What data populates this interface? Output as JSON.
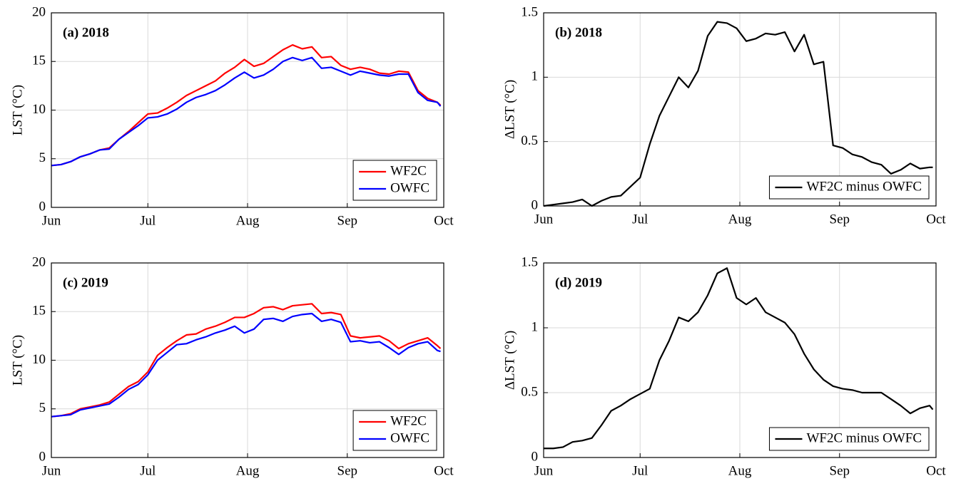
{
  "chart_data": [
    {
      "type": "line",
      "title": "(a) 2018",
      "ylabel": "LST (°C)",
      "x": [
        0,
        3,
        6,
        9,
        12,
        15,
        18,
        21,
        24,
        27,
        30,
        33,
        36,
        39,
        42,
        45,
        48,
        51,
        54,
        57,
        60,
        63,
        66,
        69,
        72,
        75,
        78,
        81,
        84,
        87,
        90,
        93,
        96,
        99,
        102,
        105,
        108,
        111,
        114,
        117,
        120,
        121
      ],
      "xlim": [
        0,
        122
      ],
      "xticks": [
        {
          "value": 0,
          "label": "Jun"
        },
        {
          "value": 30,
          "label": "Jul"
        },
        {
          "value": 61,
          "label": "Aug"
        },
        {
          "value": 92,
          "label": "Sep"
        },
        {
          "value": 122,
          "label": "Oct"
        }
      ],
      "ylim": [
        0,
        20
      ],
      "yticks": [
        0,
        5,
        10,
        15,
        20
      ],
      "grid": true,
      "legend": "lower right",
      "series": [
        {
          "name": "WF2C",
          "color": "#ff0000",
          "values": [
            4.3,
            4.4,
            4.7,
            5.2,
            5.5,
            5.9,
            6.1,
            7.0,
            7.8,
            8.7,
            9.6,
            9.7,
            10.2,
            10.8,
            11.5,
            12.0,
            12.5,
            13.0,
            13.8,
            14.4,
            15.2,
            14.5,
            14.8,
            15.5,
            16.2,
            16.7,
            16.3,
            16.5,
            15.4,
            15.5,
            14.6,
            14.2,
            14.4,
            14.2,
            13.8,
            13.7,
            14.0,
            13.9,
            12.0,
            11.2,
            10.8,
            10.5
          ]
        },
        {
          "name": "OWFC",
          "color": "#0000ff",
          "values": [
            4.3,
            4.4,
            4.7,
            5.2,
            5.5,
            5.9,
            6.0,
            7.0,
            7.7,
            8.4,
            9.2,
            9.3,
            9.6,
            10.1,
            10.8,
            11.3,
            11.6,
            12.0,
            12.6,
            13.3,
            13.9,
            13.3,
            13.6,
            14.2,
            15.0,
            15.4,
            15.1,
            15.4,
            14.3,
            14.4,
            14.0,
            13.6,
            14.0,
            13.8,
            13.6,
            13.5,
            13.7,
            13.7,
            11.8,
            11.0,
            10.8,
            10.4
          ]
        }
      ]
    },
    {
      "type": "line",
      "title": "(b) 2018",
      "ylabel": "ΔLST (°C)",
      "x": [
        0,
        3,
        6,
        9,
        12,
        15,
        18,
        21,
        24,
        27,
        30,
        33,
        36,
        39,
        42,
        45,
        48,
        51,
        54,
        57,
        60,
        63,
        66,
        69,
        72,
        75,
        78,
        81,
        84,
        87,
        90,
        93,
        96,
        99,
        102,
        105,
        108,
        111,
        114,
        117,
        120,
        121
      ],
      "xlim": [
        0,
        122
      ],
      "xticks": [
        {
          "value": 0,
          "label": "Jun"
        },
        {
          "value": 30,
          "label": "Jul"
        },
        {
          "value": 61,
          "label": "Aug"
        },
        {
          "value": 92,
          "label": "Sep"
        },
        {
          "value": 122,
          "label": "Oct"
        }
      ],
      "ylim": [
        0,
        1.5
      ],
      "yticks": [
        0,
        0.5,
        1,
        1.5
      ],
      "grid": true,
      "legend": "lower right",
      "series": [
        {
          "name": "WF2C minus OWFC",
          "color": "#000000",
          "values": [
            0.0,
            0.01,
            0.02,
            0.03,
            0.05,
            0.0,
            0.04,
            0.07,
            0.08,
            0.15,
            0.22,
            0.48,
            0.7,
            0.85,
            1.0,
            0.92,
            1.05,
            1.32,
            1.43,
            1.42,
            1.38,
            1.28,
            1.3,
            1.34,
            1.33,
            1.35,
            1.2,
            1.33,
            1.1,
            1.12,
            0.47,
            0.45,
            0.4,
            0.38,
            0.34,
            0.32,
            0.25,
            0.28,
            0.33,
            0.29,
            0.3,
            0.3
          ]
        }
      ]
    },
    {
      "type": "line",
      "title": "(c) 2019",
      "ylabel": "LST (°C)",
      "x": [
        0,
        3,
        6,
        9,
        12,
        15,
        18,
        21,
        24,
        27,
        30,
        33,
        36,
        39,
        42,
        45,
        48,
        51,
        54,
        57,
        60,
        63,
        66,
        69,
        72,
        75,
        78,
        81,
        84,
        87,
        90,
        93,
        96,
        99,
        102,
        105,
        108,
        111,
        114,
        117,
        120,
        121
      ],
      "xlim": [
        0,
        122
      ],
      "xticks": [
        {
          "value": 0,
          "label": "Jun"
        },
        {
          "value": 30,
          "label": "Jul"
        },
        {
          "value": 61,
          "label": "Aug"
        },
        {
          "value": 92,
          "label": "Sep"
        },
        {
          "value": 122,
          "label": "Oct"
        }
      ],
      "ylim": [
        0,
        20
      ],
      "yticks": [
        0,
        5,
        10,
        15,
        20
      ],
      "grid": true,
      "legend": "lower right",
      "series": [
        {
          "name": "WF2C",
          "color": "#ff0000",
          "values": [
            4.2,
            4.3,
            4.5,
            5.0,
            5.2,
            5.4,
            5.7,
            6.5,
            7.3,
            7.8,
            8.8,
            10.5,
            11.3,
            12.0,
            12.6,
            12.7,
            13.2,
            13.5,
            13.9,
            14.4,
            14.4,
            14.8,
            15.4,
            15.5,
            15.2,
            15.6,
            15.7,
            15.8,
            14.8,
            14.9,
            14.7,
            12.5,
            12.3,
            12.4,
            12.5,
            12.0,
            11.2,
            11.7,
            12.0,
            12.3,
            11.5,
            11.2
          ]
        },
        {
          "name": "OWFC",
          "color": "#0000ff",
          "values": [
            4.2,
            4.3,
            4.4,
            4.9,
            5.1,
            5.3,
            5.5,
            6.2,
            7.0,
            7.5,
            8.5,
            10.0,
            10.8,
            11.6,
            11.7,
            12.1,
            12.4,
            12.8,
            13.1,
            13.5,
            12.8,
            13.2,
            14.2,
            14.3,
            14.0,
            14.5,
            14.7,
            14.8,
            14.0,
            14.2,
            13.9,
            11.9,
            12.0,
            11.8,
            11.9,
            11.3,
            10.6,
            11.3,
            11.7,
            11.9,
            11.0,
            10.9
          ]
        }
      ]
    },
    {
      "type": "line",
      "title": "(d) 2019",
      "ylabel": "ΔLST (°C)",
      "x": [
        0,
        3,
        6,
        9,
        12,
        15,
        18,
        21,
        24,
        27,
        30,
        33,
        36,
        39,
        42,
        45,
        48,
        51,
        54,
        57,
        60,
        63,
        66,
        69,
        72,
        75,
        78,
        81,
        84,
        87,
        90,
        93,
        96,
        99,
        102,
        105,
        108,
        111,
        114,
        117,
        120,
        121
      ],
      "xlim": [
        0,
        122
      ],
      "xticks": [
        {
          "value": 0,
          "label": "Jun"
        },
        {
          "value": 30,
          "label": "Jul"
        },
        {
          "value": 61,
          "label": "Aug"
        },
        {
          "value": 92,
          "label": "Sep"
        },
        {
          "value": 122,
          "label": "Oct"
        }
      ],
      "ylim": [
        0,
        1.5
      ],
      "yticks": [
        0,
        0.5,
        1,
        1.5
      ],
      "grid": true,
      "legend": "lower right",
      "series": [
        {
          "name": "WF2C minus OWFC",
          "color": "#000000",
          "values": [
            0.07,
            0.07,
            0.08,
            0.12,
            0.13,
            0.15,
            0.25,
            0.36,
            0.4,
            0.45,
            0.49,
            0.53,
            0.75,
            0.9,
            1.08,
            1.05,
            1.12,
            1.25,
            1.42,
            1.46,
            1.23,
            1.18,
            1.23,
            1.12,
            1.08,
            1.04,
            0.95,
            0.8,
            0.68,
            0.6,
            0.55,
            0.53,
            0.52,
            0.5,
            0.5,
            0.5,
            0.45,
            0.4,
            0.34,
            0.38,
            0.4,
            0.37
          ]
        }
      ]
    }
  ]
}
